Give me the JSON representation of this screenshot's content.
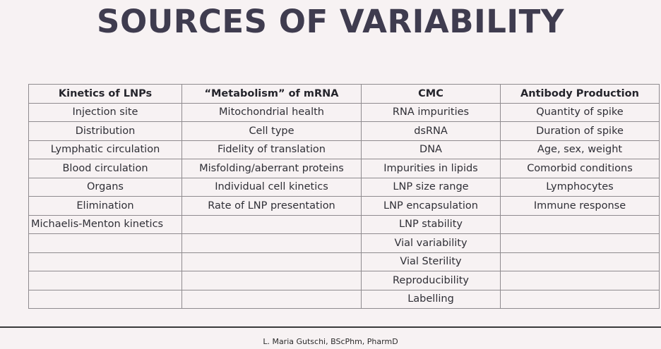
{
  "title": "SOURCES OF VARIABILITY",
  "table": {
    "headers": [
      "Kinetics of LNPs",
      "“Metabolism” of mRNA",
      "CMC",
      "Antibody Production"
    ],
    "rows": [
      [
        "Injection site",
        "Mitochondrial health",
        "RNA impurities",
        "Quantity of spike"
      ],
      [
        "Distribution",
        "Cell type",
        "dsRNA",
        "Duration of spike"
      ],
      [
        "Lymphatic circulation",
        "Fidelity of translation",
        "DNA",
        "Age, sex, weight"
      ],
      [
        "Blood circulation",
        "Misfolding/aberrant proteins",
        "Impurities in lipids",
        "Comorbid conditions"
      ],
      [
        "Organs",
        "Individual cell kinetics",
        "LNP size range",
        "Lymphocytes"
      ],
      [
        "Elimination",
        "Rate of LNP presentation",
        "LNP encapsulation",
        "Immune response"
      ],
      [
        "Michaelis-Menton kinetics",
        "",
        "LNP stability",
        ""
      ],
      [
        "",
        "",
        "Vial variability",
        ""
      ],
      [
        "",
        "",
        "Vial Sterility",
        ""
      ],
      [
        "",
        "",
        "Reproducibility",
        ""
      ],
      [
        "",
        "",
        "Labelling",
        ""
      ]
    ]
  },
  "footer": {
    "author": "L. Maria Gutschi, BScPhm, PharmD"
  }
}
